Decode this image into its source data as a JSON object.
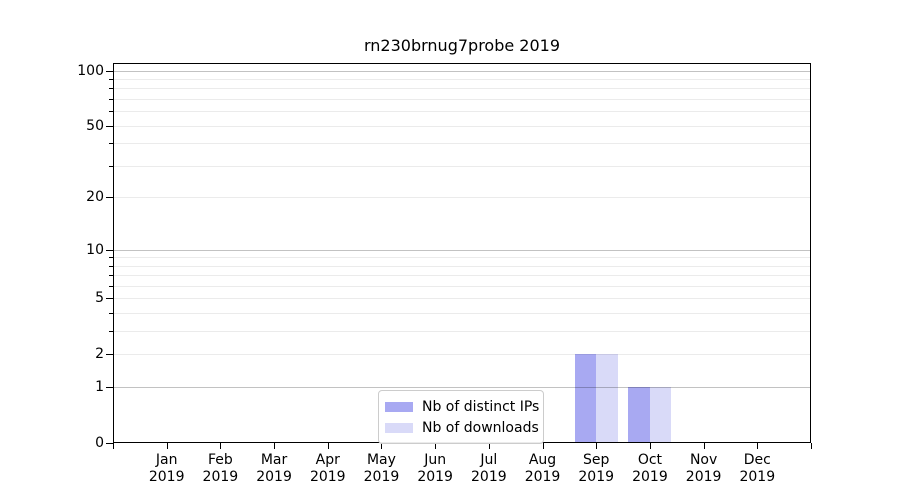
{
  "chart_data": {
    "type": "bar",
    "title": "rn230brnug7probe 2019",
    "categories": [
      "Jan",
      "Feb",
      "Mar",
      "Apr",
      "May",
      "Jun",
      "Jul",
      "Aug",
      "Sep",
      "Oct",
      "Nov",
      "Dec"
    ],
    "x_year_label": "2019",
    "series": [
      {
        "name": "Nb of distinct IPs",
        "color": "#a8a9f2",
        "values": [
          0,
          0,
          0,
          0,
          0,
          0,
          0,
          0,
          2,
          1,
          0,
          0
        ]
      },
      {
        "name": "Nb of downloads",
        "color": "#d9daf8",
        "values": [
          0,
          0,
          0,
          0,
          0,
          0,
          0,
          0,
          2,
          1,
          0,
          0
        ]
      }
    ],
    "yscale": "log1p",
    "ylim": [
      0,
      110
    ],
    "yticks": [
      0,
      1,
      2,
      5,
      10,
      20,
      50,
      100
    ],
    "grid_major_at": [
      1,
      10,
      100
    ],
    "grid_minor_at": [
      2,
      3,
      4,
      5,
      6,
      7,
      8,
      9,
      20,
      30,
      40,
      50,
      60,
      70,
      80,
      90
    ],
    "legend_position": "lower-center-inside",
    "legend_entries": [
      "Nb of distinct IPs",
      "Nb of downloads"
    ]
  }
}
